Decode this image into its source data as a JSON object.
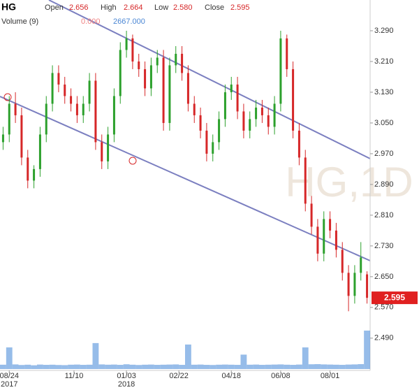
{
  "chart_data": {
    "type": "candlestick",
    "title": "HG",
    "watermark": "HG,1D",
    "ohlc_names": [
      "Open",
      "High",
      "Low",
      "Close"
    ],
    "ohlc_labels": [
      "2.656",
      "2.664",
      "2.580",
      "2.595"
    ],
    "volume_title": "Volume (9)",
    "volume_range_labels": [
      "0.000",
      "2667.000"
    ],
    "last_close": 2.595,
    "last_close_label": "2.595",
    "up_color": "#2ca02c",
    "down_color": "#d62728",
    "volume_color": "#6a9fe0",
    "xlim": [
      0,
      60
    ],
    "xticks": [
      {
        "value": 1.5,
        "label": "08/24"
      },
      {
        "value": 12,
        "label": "11/10"
      },
      {
        "value": 20.5,
        "label": "01/03"
      },
      {
        "value": 29,
        "label": "02/22"
      },
      {
        "value": 37.5,
        "label": "04/18"
      },
      {
        "value": 45.5,
        "label": "06/08"
      },
      {
        "value": 53.5,
        "label": "08/01"
      }
    ],
    "year_labels": [
      {
        "value": 1.5,
        "label": "2017"
      },
      {
        "value": 20.5,
        "label": "2018"
      }
    ],
    "ylim": [
      2.406,
      3.37
    ],
    "yticks": [
      {
        "value": 3.29,
        "label": "3.290"
      },
      {
        "value": 3.21,
        "label": "3.210"
      },
      {
        "value": 3.13,
        "label": "3.130"
      },
      {
        "value": 3.05,
        "label": "3.050"
      },
      {
        "value": 2.97,
        "label": "2.970"
      },
      {
        "value": 2.89,
        "label": "2.890"
      },
      {
        "value": 2.81,
        "label": "2.810"
      },
      {
        "value": 2.73,
        "label": "2.730"
      },
      {
        "value": 2.65,
        "label": "2.650"
      },
      {
        "value": 2.57,
        "label": "2.570"
      },
      {
        "value": 2.49,
        "label": "2.490"
      }
    ],
    "vlim": [
      0,
      2667
    ],
    "open": [
      3.0,
      3.02,
      3.1,
      3.07,
      2.96,
      2.9,
      2.93,
      3.02,
      3.1,
      3.18,
      3.15,
      3.12,
      3.1,
      3.07,
      3.1,
      3.16,
      3.0,
      2.95,
      3.02,
      3.12,
      3.24,
      3.27,
      3.21,
      3.19,
      3.14,
      3.2,
      3.22,
      3.05,
      3.2,
      3.23,
      3.18,
      3.1,
      3.07,
      3.03,
      2.97,
      3.0,
      3.06,
      3.13,
      3.15,
      3.08,
      3.03,
      3.06,
      3.09,
      3.07,
      3.04,
      3.1,
      3.27,
      3.19,
      3.03,
      2.96,
      2.84,
      2.78,
      2.71,
      2.8,
      2.77,
      2.72,
      2.66,
      2.6,
      2.66,
      2.656
    ],
    "high": [
      3.04,
      3.12,
      3.13,
      3.09,
      2.98,
      2.94,
      3.04,
      3.12,
      3.2,
      3.2,
      3.17,
      3.14,
      3.12,
      3.12,
      3.18,
      3.18,
      3.02,
      3.04,
      3.14,
      3.26,
      3.29,
      3.28,
      3.23,
      3.21,
      3.22,
      3.24,
      3.24,
      3.22,
      3.25,
      3.25,
      3.2,
      3.12,
      3.09,
      3.05,
      3.02,
      3.08,
      3.15,
      3.17,
      3.17,
      3.1,
      3.08,
      3.11,
      3.11,
      3.09,
      3.12,
      3.29,
      3.28,
      3.21,
      3.05,
      2.98,
      2.86,
      2.8,
      2.82,
      2.82,
      2.79,
      2.74,
      2.68,
      2.68,
      2.74,
      2.664
    ],
    "low": [
      2.98,
      3.0,
      3.05,
      2.94,
      2.88,
      2.88,
      2.91,
      3.0,
      3.08,
      3.13,
      3.1,
      3.08,
      3.05,
      3.05,
      3.08,
      2.98,
      2.93,
      2.93,
      3.0,
      3.1,
      3.22,
      3.19,
      3.17,
      3.12,
      3.12,
      3.18,
      3.03,
      3.03,
      3.18,
      3.16,
      3.08,
      3.05,
      3.01,
      2.95,
      2.95,
      2.98,
      3.04,
      3.11,
      3.06,
      3.01,
      3.01,
      3.04,
      3.05,
      3.02,
      3.02,
      3.08,
      3.17,
      3.01,
      2.94,
      2.82,
      2.76,
      2.69,
      2.69,
      2.75,
      2.7,
      2.64,
      2.56,
      2.58,
      2.64,
      2.58
    ],
    "close": [
      3.02,
      3.1,
      3.07,
      2.96,
      2.9,
      2.93,
      3.02,
      3.1,
      3.18,
      3.15,
      3.12,
      3.1,
      3.07,
      3.1,
      3.16,
      3.0,
      2.95,
      3.02,
      3.12,
      3.24,
      3.27,
      3.21,
      3.19,
      3.14,
      3.2,
      3.22,
      3.05,
      3.2,
      3.23,
      3.18,
      3.1,
      3.07,
      3.03,
      2.97,
      3.0,
      3.06,
      3.13,
      3.15,
      3.08,
      3.03,
      3.06,
      3.09,
      3.07,
      3.04,
      3.1,
      3.27,
      3.19,
      3.03,
      2.96,
      2.84,
      2.78,
      2.71,
      2.8,
      2.77,
      2.72,
      2.66,
      2.6,
      2.66,
      2.7,
      2.595
    ],
    "volume": [
      300,
      1500,
      320,
      280,
      300,
      260,
      310,
      290,
      300,
      280,
      270,
      300,
      310,
      290,
      300,
      1800,
      320,
      300,
      310,
      290,
      330,
      300,
      280,
      300,
      310,
      290,
      300,
      310,
      320,
      290,
      1700,
      300,
      310,
      290,
      280,
      300,
      310,
      300,
      290,
      1000,
      300,
      310,
      290,
      300,
      310,
      320,
      300,
      290,
      310,
      1500,
      330,
      340,
      320,
      310,
      300,
      290,
      310,
      320,
      340,
      2667
    ]
  }
}
